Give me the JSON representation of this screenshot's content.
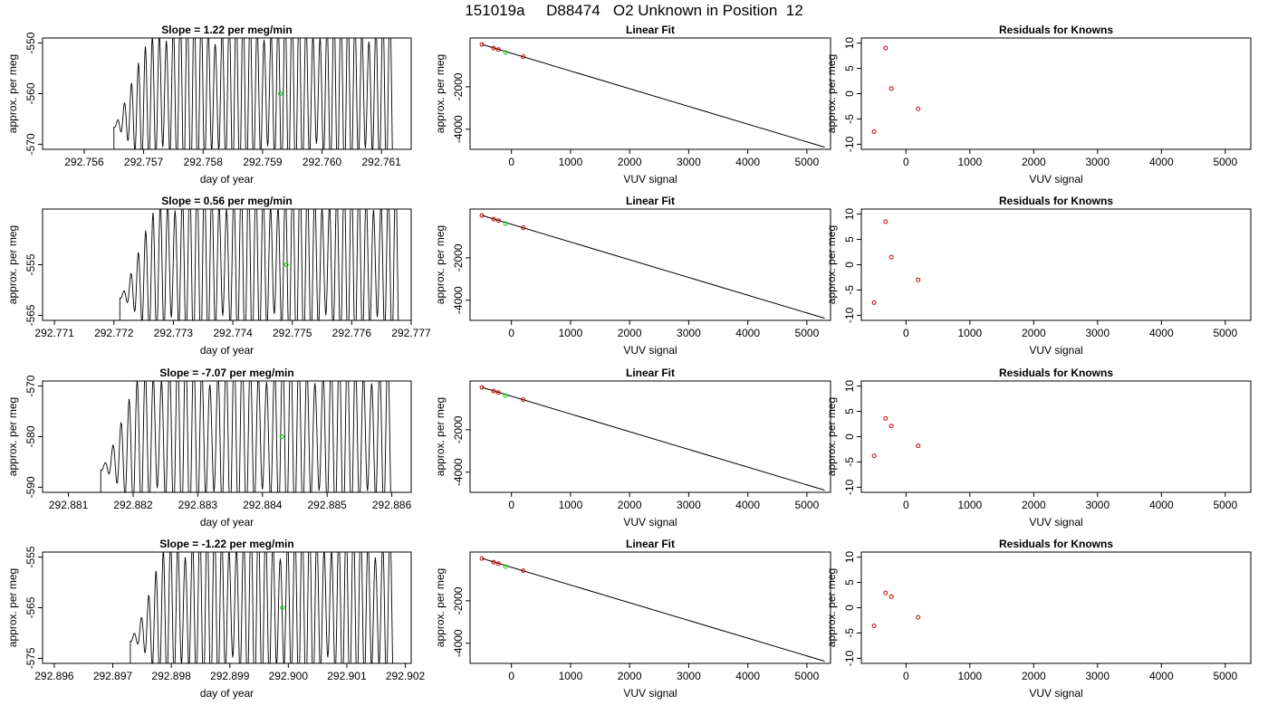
{
  "title": "151019a     D88474   O2 Unknown in Position  12",
  "chart_data": [
    {
      "type": "line",
      "title": "Slope =  1.22  per meg/min",
      "xlabel": "day of year",
      "ylabel": "approx. per meg",
      "xlim": [
        292.7553,
        292.7615
      ],
      "ylim": [
        -571,
        -549
      ],
      "xticks": [
        292.756,
        292.757,
        292.758,
        292.759,
        292.76,
        292.761
      ],
      "xtick_labels": [
        "292.756",
        "292.757",
        "292.758",
        "292.759",
        "292.760",
        "292.761"
      ],
      "yticks": [
        -550,
        -560,
        -570
      ],
      "ytick_labels": [
        "-550",
        "-560",
        "-570"
      ],
      "x_start": 292.7565,
      "x_end": 292.7612,
      "oscillations": 40,
      "marker": {
        "x": 292.7593,
        "y": -560
      }
    },
    {
      "type": "scatter",
      "title": "Linear Fit",
      "xlabel": "VUV signal",
      "ylabel": "approx. per meg",
      "xlim": [
        -700,
        5400
      ],
      "ylim": [
        -4950,
        300
      ],
      "xticks": [
        0,
        1000,
        2000,
        3000,
        4000,
        5000
      ],
      "yticks": [
        -2000,
        -4000
      ],
      "fit_line": [
        [
          -500,
          0
        ],
        [
          5300,
          -4850
        ]
      ],
      "knowns": [
        [
          -500,
          -3
        ],
        [
          -300,
          -177
        ],
        [
          -220,
          -243
        ],
        [
          200,
          -580
        ]
      ],
      "unknown": [
        [
          -100,
          -390
        ]
      ]
    },
    {
      "type": "scatter",
      "title": "Residuals for Knowns",
      "xlabel": "VUV signal",
      "ylabel": "approx. per meg",
      "xlim": [
        -700,
        5400
      ],
      "ylim": [
        -11,
        11
      ],
      "xticks": [
        0,
        1000,
        2000,
        3000,
        4000,
        5000
      ],
      "yticks": [
        10,
        5,
        0,
        -5,
        -10
      ],
      "points": [
        [
          -500,
          -7.5
        ],
        [
          -320,
          9
        ],
        [
          -230,
          1
        ],
        [
          190,
          -3
        ]
      ]
    },
    {
      "type": "line",
      "title": "Slope =  0.56  per meg/min",
      "xlabel": "day of year",
      "ylabel": "approx. per meg",
      "xlim": [
        292.7708,
        292.777
      ],
      "ylim": [
        -566,
        -544
      ],
      "xticks": [
        292.771,
        292.772,
        292.773,
        292.774,
        292.775,
        292.776,
        292.777
      ],
      "xtick_labels": [
        "292.771",
        "292.772",
        "292.773",
        "292.774",
        "292.775",
        "292.776",
        "292.777"
      ],
      "yticks": [
        -555,
        -565
      ],
      "ytick_labels": [
        "-555",
        "-565"
      ],
      "x_start": 292.7721,
      "x_end": 292.7768,
      "oscillations": 38,
      "marker": {
        "x": 292.7749,
        "y": -555
      }
    },
    {
      "type": "scatter",
      "title": "Linear Fit",
      "xlabel": "VUV signal",
      "ylabel": "approx. per meg",
      "xlim": [
        -700,
        5400
      ],
      "ylim": [
        -4950,
        300
      ],
      "xticks": [
        0,
        1000,
        2000,
        3000,
        4000,
        5000
      ],
      "yticks": [
        -2000,
        -4000
      ],
      "fit_line": [
        [
          -500,
          0
        ],
        [
          5300,
          -4850
        ]
      ],
      "knowns": [
        [
          -500,
          -3
        ],
        [
          -300,
          -177
        ],
        [
          -220,
          -243
        ],
        [
          200,
          -580
        ]
      ],
      "unknown": [
        [
          -100,
          -390
        ]
      ]
    },
    {
      "type": "scatter",
      "title": "Residuals for Knowns",
      "xlabel": "VUV signal",
      "ylabel": "approx. per meg",
      "xlim": [
        -700,
        5400
      ],
      "ylim": [
        -11,
        11
      ],
      "xticks": [
        0,
        1000,
        2000,
        3000,
        4000,
        5000
      ],
      "yticks": [
        10,
        5,
        0,
        -5,
        -10
      ],
      "points": [
        [
          -500,
          -7.5
        ],
        [
          -320,
          8.5
        ],
        [
          -230,
          1.5
        ],
        [
          190,
          -3
        ]
      ]
    },
    {
      "type": "line",
      "title": "Slope =  -7.07  per meg/min",
      "xlabel": "day of year",
      "ylabel": "approx. per meg",
      "xlim": [
        292.8806,
        292.8863
      ],
      "ylim": [
        -591,
        -569
      ],
      "xticks": [
        292.881,
        292.882,
        292.883,
        292.884,
        292.885,
        292.886
      ],
      "xtick_labels": [
        "292.881",
        "292.882",
        "292.883",
        "292.884",
        "292.885",
        "292.886"
      ],
      "yticks": [
        -570,
        -580,
        -590
      ],
      "ytick_labels": [
        "-570",
        "-580",
        "-590"
      ],
      "x_start": 292.8815,
      "x_end": 292.886,
      "oscillations": 36,
      "marker": {
        "x": 292.8843,
        "y": -580
      }
    },
    {
      "type": "scatter",
      "title": "Linear Fit",
      "xlabel": "VUV signal",
      "ylabel": "approx. per meg",
      "xlim": [
        -700,
        5400
      ],
      "ylim": [
        -4950,
        300
      ],
      "xticks": [
        0,
        1000,
        2000,
        3000,
        4000,
        5000
      ],
      "yticks": [
        -2000,
        -4000
      ],
      "fit_line": [
        [
          -500,
          0
        ],
        [
          5300,
          -4850
        ]
      ],
      "knowns": [
        [
          -500,
          -3
        ],
        [
          -300,
          -177
        ],
        [
          -220,
          -243
        ],
        [
          200,
          -580
        ]
      ],
      "unknown": [
        [
          -100,
          -390
        ]
      ]
    },
    {
      "type": "scatter",
      "title": "Residuals for Knowns",
      "xlabel": "VUV signal",
      "ylabel": "approx. per meg",
      "xlim": [
        -700,
        5400
      ],
      "ylim": [
        -11,
        11
      ],
      "xticks": [
        0,
        1000,
        2000,
        3000,
        4000,
        5000
      ],
      "yticks": [
        10,
        5,
        0,
        -5,
        -10
      ],
      "points": [
        [
          -500,
          -3.8
        ],
        [
          -320,
          3.6
        ],
        [
          -230,
          2.1
        ],
        [
          190,
          -1.8
        ]
      ]
    },
    {
      "type": "line",
      "title": "Slope =  -1.22  per meg/min",
      "xlabel": "day of year",
      "ylabel": "approx. per meg",
      "xlim": [
        292.8958,
        292.9021
      ],
      "ylim": [
        -576,
        -554
      ],
      "xticks": [
        292.896,
        292.897,
        292.898,
        292.899,
        292.9,
        292.901,
        292.902
      ],
      "xtick_labels": [
        "292.896",
        "292.897",
        "292.898",
        "292.899",
        "292.900",
        "292.901",
        "292.902"
      ],
      "yticks": [
        -555,
        -565,
        -575
      ],
      "ytick_labels": [
        "-555",
        "-565",
        "-575"
      ],
      "x_start": 292.8973,
      "x_end": 292.9018,
      "oscillations": 36,
      "marker": {
        "x": 292.8999,
        "y": -565
      }
    },
    {
      "type": "scatter",
      "title": "Linear Fit",
      "xlabel": "VUV signal",
      "ylabel": "approx. per meg",
      "xlim": [
        -700,
        5400
      ],
      "ylim": [
        -4950,
        300
      ],
      "xticks": [
        0,
        1000,
        2000,
        3000,
        4000,
        5000
      ],
      "yticks": [
        -2000,
        -4000
      ],
      "fit_line": [
        [
          -500,
          0
        ],
        [
          5300,
          -4850
        ]
      ],
      "knowns": [
        [
          -500,
          -3
        ],
        [
          -300,
          -177
        ],
        [
          -220,
          -243
        ],
        [
          200,
          -580
        ]
      ],
      "unknown": [
        [
          -100,
          -390
        ]
      ]
    },
    {
      "type": "scatter",
      "title": "Residuals for Knowns",
      "xlabel": "VUV signal",
      "ylabel": "approx. per meg",
      "xlim": [
        -700,
        5400
      ],
      "ylim": [
        -11,
        11
      ],
      "xticks": [
        0,
        1000,
        2000,
        3000,
        4000,
        5000
      ],
      "yticks": [
        10,
        5,
        0,
        -5,
        -10
      ],
      "points": [
        [
          -500,
          -3.6
        ],
        [
          -320,
          2.9
        ],
        [
          -230,
          2.2
        ],
        [
          190,
          -1.9
        ]
      ]
    }
  ]
}
